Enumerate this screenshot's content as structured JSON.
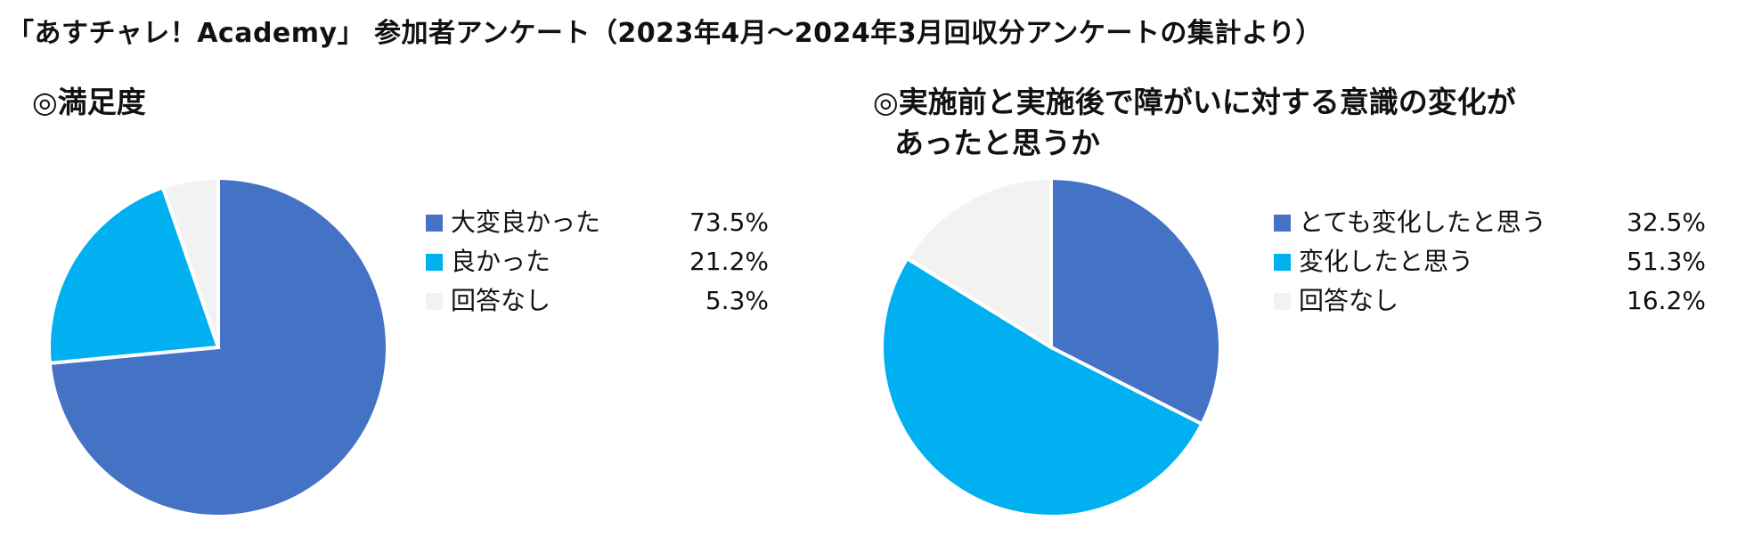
{
  "page": {
    "title": "「あすチャレ！Academy」 参加者アンケート（2023年4月～2024年3月回収分アンケートの集計より）"
  },
  "chart_data": [
    {
      "type": "pie",
      "title": "◎満足度",
      "slices": [
        {
          "label": "大変良かった",
          "value": 73.5,
          "value_text": "73.5%",
          "color": "#4472C4"
        },
        {
          "label": "良かった",
          "value": 21.2,
          "value_text": "21.2%",
          "color": "#00B0F0"
        },
        {
          "label": "回答なし",
          "value": 5.3,
          "value_text": "5.3%",
          "color": "#F2F2F2"
        }
      ],
      "legend_position": "right"
    },
    {
      "type": "pie",
      "title_lines": [
        "◎実施前と実施後で障がいに対する意識の変化が",
        "あったと思うか"
      ],
      "slices": [
        {
          "label": "とても変化したと思う",
          "value": 32.5,
          "value_text": "32.5%",
          "color": "#4472C4"
        },
        {
          "label": "変化したと思う",
          "value": 51.3,
          "value_text": "51.3%",
          "color": "#00B0F0"
        },
        {
          "label": "回答なし",
          "value": 16.2,
          "value_text": "16.2%",
          "color": "#F2F2F2"
        }
      ],
      "legend_position": "right"
    }
  ]
}
